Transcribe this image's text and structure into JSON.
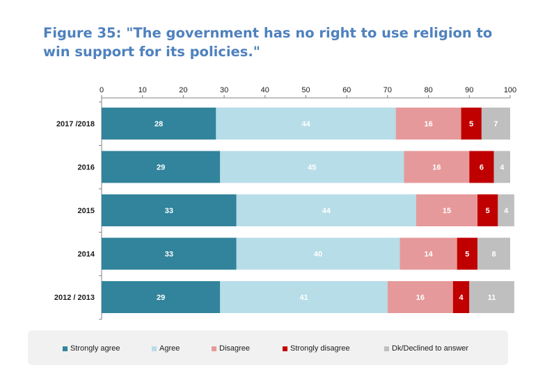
{
  "title": "Figure 35: \"The government has no right to use religion to win support for its policies.\"",
  "chart_data": {
    "type": "bar",
    "orientation": "horizontal",
    "stacked": true,
    "title": "Figure 35: \"The government has no right to use religion to win support for its policies.\"",
    "xlabel": "",
    "ylabel": "",
    "xlim": [
      0,
      100
    ],
    "x_ticks": [
      0,
      10,
      20,
      30,
      40,
      50,
      60,
      70,
      80,
      90,
      100
    ],
    "categories": [
      "2017 /2018",
      "2016",
      "2015",
      "2014",
      "2012 / 2013"
    ],
    "series": [
      {
        "name": "Strongly agree",
        "color": "#31849b",
        "label_color": "#ffffff",
        "values": [
          28,
          29,
          33,
          33,
          29
        ]
      },
      {
        "name": "Agree",
        "color": "#b7dde8",
        "label_color": "#ffffff",
        "values": [
          44,
          45,
          44,
          40,
          41
        ]
      },
      {
        "name": "Disagree",
        "color": "#e6999a",
        "label_color": "#ffffff",
        "values": [
          16,
          16,
          15,
          14,
          16
        ]
      },
      {
        "name": "Strongly disagree",
        "color": "#c00000",
        "label_color": "#ffffff",
        "values": [
          5,
          6,
          5,
          5,
          4
        ]
      },
      {
        "name": "Dk/Declined to answer",
        "color": "#bfbfbf",
        "label_color": "#ffffff",
        "values": [
          7,
          4,
          4,
          8,
          11
        ]
      }
    ],
    "legend_position": "bottom",
    "grid": false
  }
}
